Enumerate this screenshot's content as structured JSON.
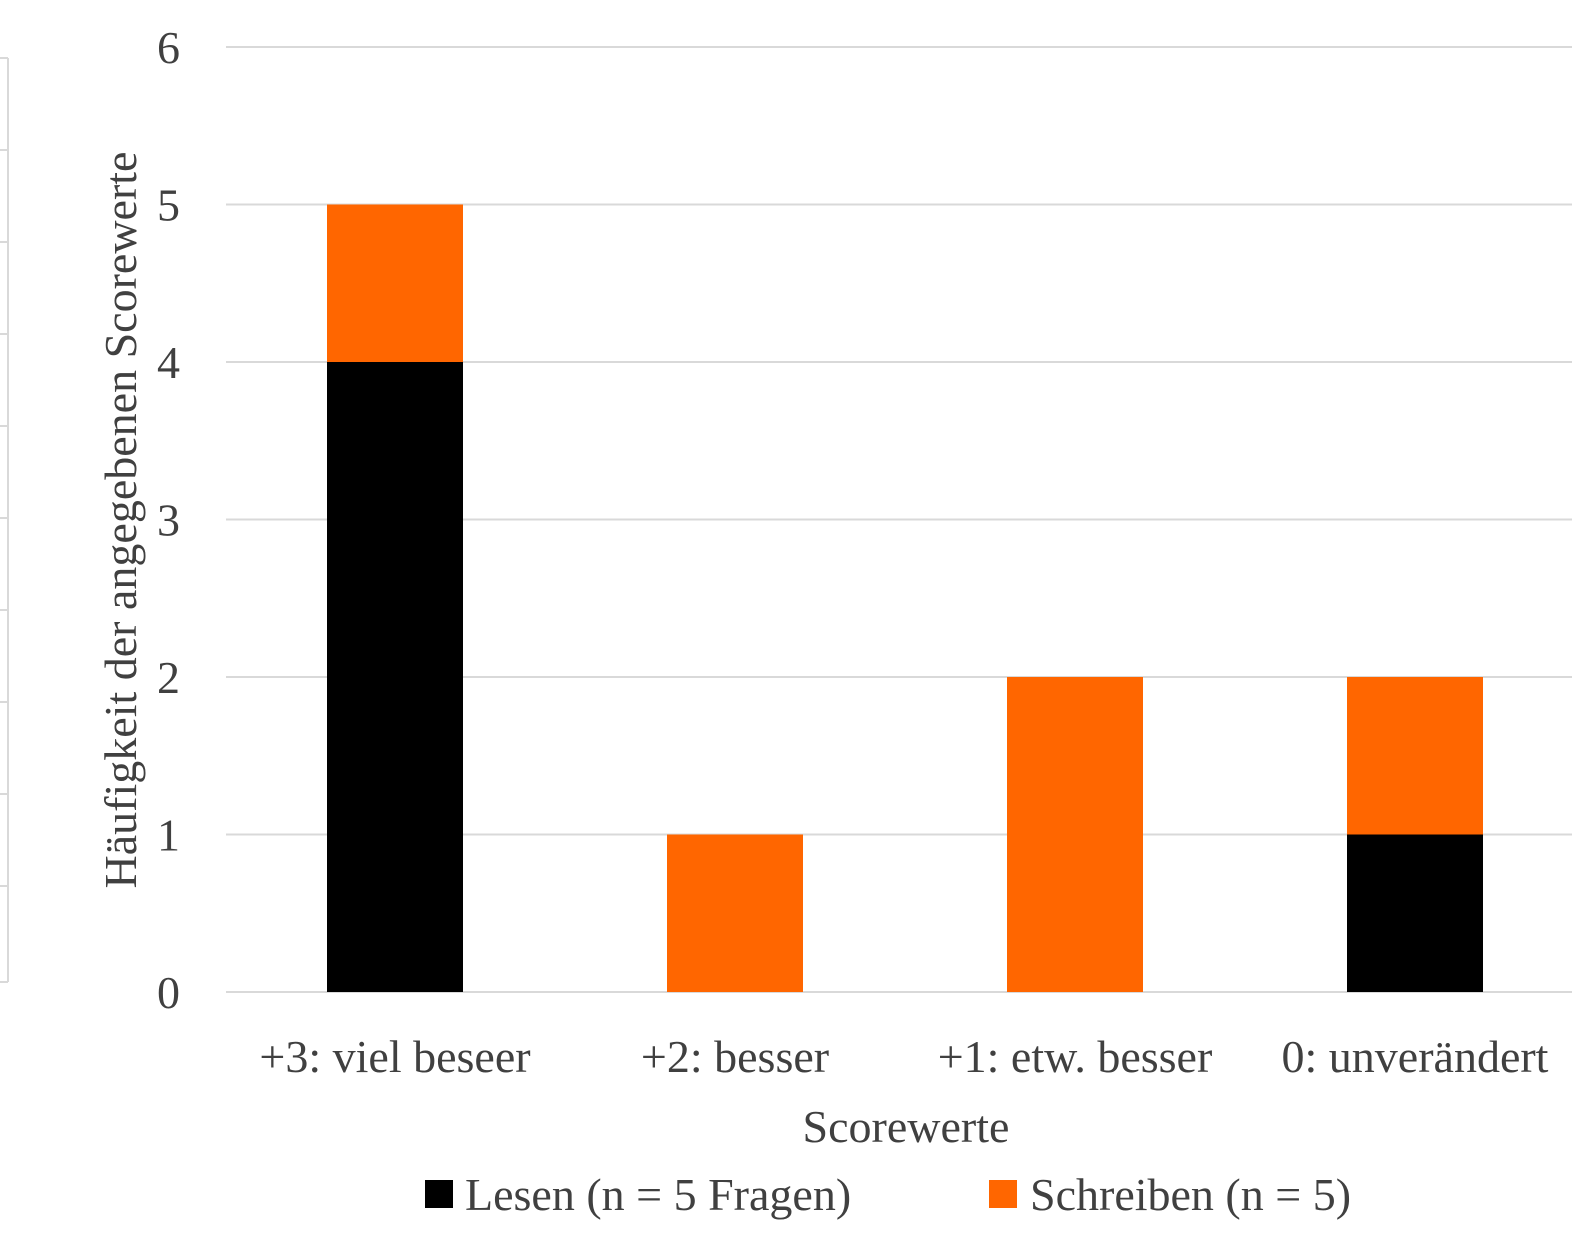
{
  "chart_data": {
    "type": "bar",
    "stacked": true,
    "title": "",
    "xlabel": "Scorewerte",
    "ylabel": "Häufigkeit der angegebenen Scorewerte",
    "ylim": [
      0,
      6
    ],
    "yticks": [
      "0",
      "1",
      "2",
      "3",
      "4",
      "5",
      "6"
    ],
    "grid": true,
    "legend_position": "bottom",
    "categories": [
      "+3: viel beseer",
      "+2: besser",
      "+1: etw. besser",
      "0: unverändert"
    ],
    "series": [
      {
        "name": "Lesen (n = 5 Fragen)",
        "color": "#000000",
        "values": [
          4,
          0,
          0,
          1
        ]
      },
      {
        "name": "Schreiben (n = 5)",
        "color": "#ff6600",
        "values": [
          1,
          1,
          2,
          1
        ]
      }
    ]
  }
}
